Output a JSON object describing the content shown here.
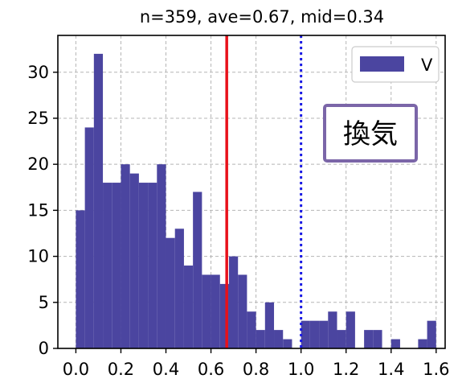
{
  "chart_data": {
    "type": "bar",
    "title": "n=359, ave=0.67, mid=0.34",
    "xlabel": "",
    "ylabel": "",
    "xlim": [
      -0.08,
      1.64
    ],
    "ylim": [
      0,
      34
    ],
    "bin_width": 0.04,
    "x": [
      0.0,
      0.04,
      0.08,
      0.12,
      0.16,
      0.2,
      0.24,
      0.28,
      0.32,
      0.36,
      0.4,
      0.44,
      0.48,
      0.52,
      0.56,
      0.6,
      0.64,
      0.68,
      0.72,
      0.76,
      0.8,
      0.84,
      0.88,
      0.92,
      0.96,
      1.0,
      1.04,
      1.08,
      1.12,
      1.16,
      1.2,
      1.24,
      1.28,
      1.32,
      1.36,
      1.4,
      1.44,
      1.48,
      1.52,
      1.56
    ],
    "series": [
      {
        "name": "V",
        "color": "#4b45a0",
        "values": [
          15,
          24,
          32,
          18,
          18,
          20,
          19,
          18,
          18,
          20,
          12,
          13,
          9,
          17,
          8,
          8,
          7,
          10,
          8,
          4,
          2,
          5,
          2,
          1,
          0,
          3,
          3,
          3,
          4,
          2,
          4,
          0,
          2,
          2,
          0,
          1,
          0,
          0,
          1,
          3
        ]
      }
    ],
    "xticks": [
      0.0,
      0.2,
      0.4,
      0.6,
      0.8,
      1.0,
      1.2,
      1.4,
      1.6
    ],
    "xtick_labels": [
      "0.0",
      "0.2",
      "0.4",
      "0.6",
      "0.8",
      "1.0",
      "1.2",
      "1.4",
      "1.6"
    ],
    "yticks": [
      0,
      5,
      10,
      15,
      20,
      25,
      30
    ],
    "ytick_labels": [
      "0",
      "5",
      "10",
      "15",
      "20",
      "25",
      "30"
    ],
    "reference_lines": [
      {
        "x": 0.67,
        "color": "#e8111a",
        "style": "solid"
      },
      {
        "x": 1.0,
        "color": "#1a1ae6",
        "style": "dotted"
      }
    ],
    "grid": true,
    "legend_position": "top-right",
    "annotation": {
      "text": "換気",
      "border_color": "#7b66a8"
    }
  }
}
